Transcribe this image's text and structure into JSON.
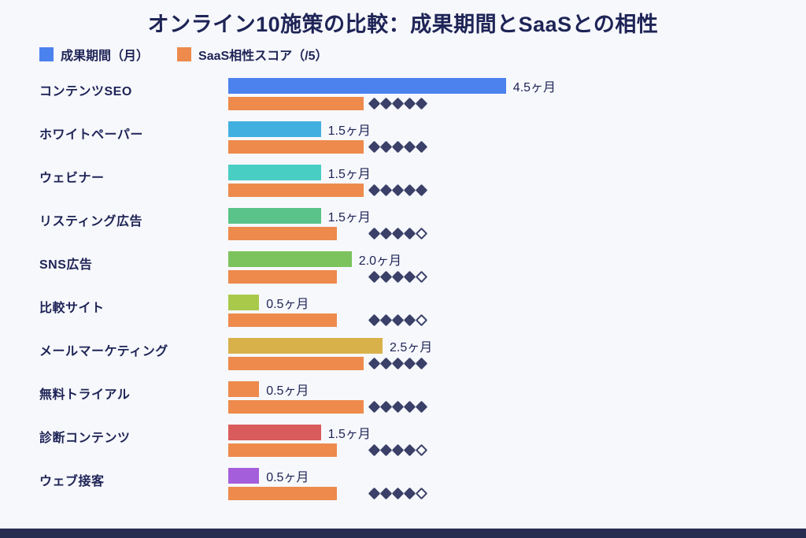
{
  "chart_data": {
    "type": "bar",
    "title": "オンライン10施策の比較：成果期間とSaaSとの相性",
    "orientation": "horizontal",
    "legend_position": "top-left",
    "legend": [
      {
        "label": "成果期間（月）",
        "color": "#4c82ee"
      },
      {
        "label": "SaaS相性スコア（/5）",
        "color": "#ed8a4c"
      }
    ],
    "month_axis_max": 4.5,
    "score_max": 5,
    "score_bar_color": "#ed8a4c",
    "diamond_color": "#3a4068",
    "background_color": "#f7f8fc",
    "text_color": "#1e2456",
    "footer_bar_color": "#262c50",
    "rows": [
      {
        "category": "コンテンツSEO",
        "months": 4.5,
        "months_label": "4.5ヶ月",
        "score": 5,
        "bar_color": "#4c82ee"
      },
      {
        "category": "ホワイトペーパー",
        "months": 1.5,
        "months_label": "1.5ヶ月",
        "score": 5,
        "bar_color": "#41b0e0"
      },
      {
        "category": "ウェビナー",
        "months": 1.5,
        "months_label": "1.5ヶ月",
        "score": 5,
        "bar_color": "#49cec3"
      },
      {
        "category": "リスティング広告",
        "months": 1.5,
        "months_label": "1.5ヶ月",
        "score": 4,
        "bar_color": "#59c389"
      },
      {
        "category": "SNS広告",
        "months": 2.0,
        "months_label": "2.0ヶ月",
        "score": 4,
        "bar_color": "#7cc35e"
      },
      {
        "category": "比較サイト",
        "months": 0.5,
        "months_label": "0.5ヶ月",
        "score": 4,
        "bar_color": "#a9c94b"
      },
      {
        "category": "メールマーケティング",
        "months": 2.5,
        "months_label": "2.5ヶ月",
        "score": 5,
        "bar_color": "#d9b14b"
      },
      {
        "category": "無料トライアル",
        "months": 0.5,
        "months_label": "0.5ヶ月",
        "score": 5,
        "bar_color": "#ed8a4c"
      },
      {
        "category": "診断コンテンツ",
        "months": 1.5,
        "months_label": "1.5ヶ月",
        "score": 4,
        "bar_color": "#d95b5b"
      },
      {
        "category": "ウェブ接客",
        "months": 0.5,
        "months_label": "0.5ヶ月",
        "score": 4,
        "bar_color": "#a55edb"
      }
    ]
  }
}
